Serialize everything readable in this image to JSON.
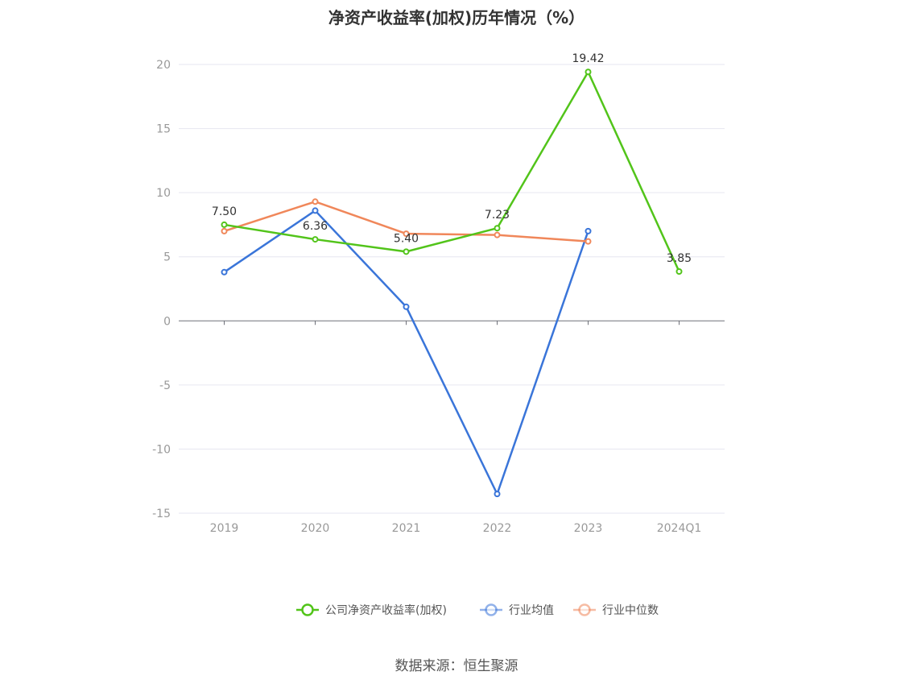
{
  "chart_data": {
    "type": "line",
    "title": "净资产收益率(加权)历年情况（%）",
    "categories": [
      "2019",
      "2020",
      "2021",
      "2022",
      "2023",
      "2024Q1"
    ],
    "ylim": [
      -15,
      20
    ],
    "yticks": [
      20,
      15,
      10,
      5,
      0,
      -5,
      -10,
      -15
    ],
    "grid": true,
    "legend_position": "bottom",
    "series": [
      {
        "name": "公司净资产收益率(加权)",
        "color": "#52c41a",
        "values": [
          7.5,
          6.36,
          5.4,
          7.23,
          19.42,
          3.85
        ],
        "labels": [
          "7.50",
          "6.36",
          "5.40",
          "7.23",
          "19.42",
          "3.85"
        ]
      },
      {
        "name": "行业均值",
        "color": "#3a75d9",
        "values": [
          3.8,
          8.6,
          1.1,
          -13.5,
          7.0,
          null
        ]
      },
      {
        "name": "行业中位数",
        "color": "#f0875a",
        "values": [
          7.0,
          9.3,
          6.8,
          6.7,
          6.2,
          null
        ]
      }
    ]
  },
  "source": "数据来源：恒生聚源"
}
